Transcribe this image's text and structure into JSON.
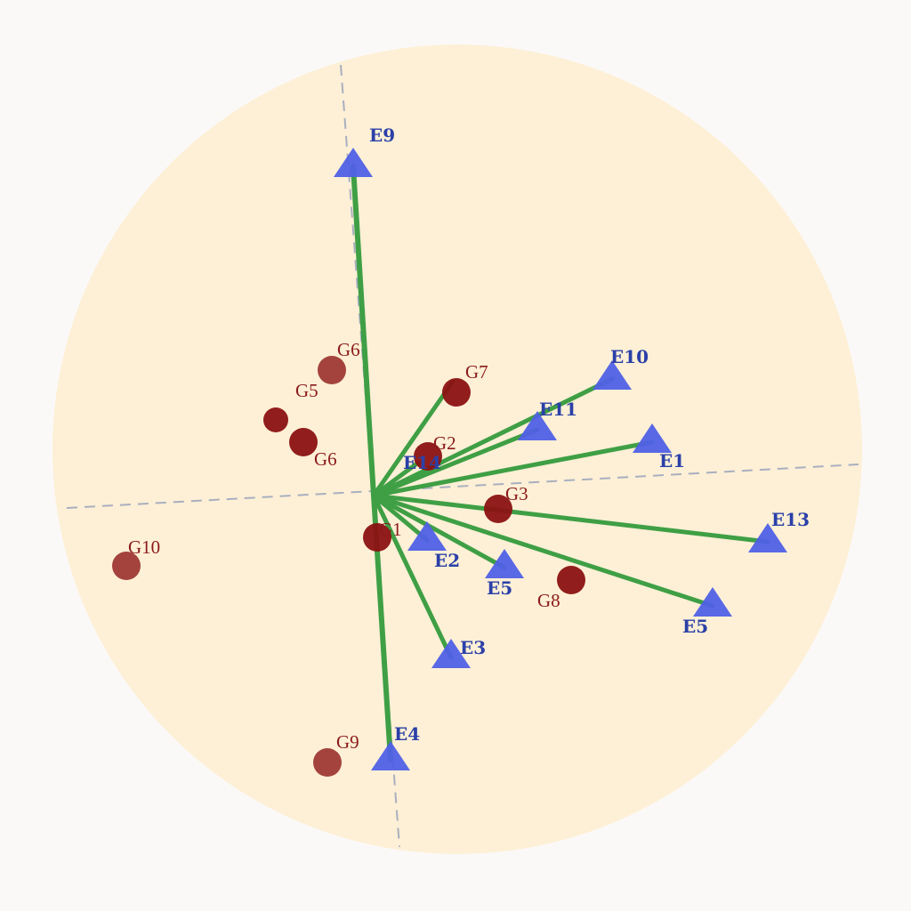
{
  "chart_data": {
    "type": "scatter",
    "title": "",
    "xlabel": "",
    "ylabel": "",
    "grid": false,
    "legend": "none",
    "colors": {
      "background_disc": "#fdf0d6",
      "vector": "#3f9f45",
      "environment": "#5060e6",
      "genotype": "#8b1212",
      "axis": "#a9afc0"
    },
    "environments": [
      {
        "label": "E9",
        "x": -0.23,
        "y": 3.74
      },
      {
        "label": "E10",
        "x": 2.68,
        "y": 1.35
      },
      {
        "label": "E11",
        "x": 1.84,
        "y": 0.78
      },
      {
        "label": "E1",
        "x": 3.13,
        "y": 0.64
      },
      {
        "label": "E14",
        "x": 0.5,
        "y": 0.37
      },
      {
        "label": "E13",
        "x": 4.43,
        "y": -0.48
      },
      {
        "label": "E5",
        "x": 3.81,
        "y": -1.2
      },
      {
        "label": "E5",
        "x": 1.47,
        "y": -0.77
      },
      {
        "label": "E2",
        "x": 0.6,
        "y": -0.46
      },
      {
        "label": "E3",
        "x": 0.87,
        "y": -1.78
      },
      {
        "label": "E4",
        "x": 0.19,
        "y": -2.93
      }
    ],
    "genotypes": [
      {
        "label": "G7",
        "x": 0.93,
        "y": 1.16
      },
      {
        "label": "G2",
        "x": 0.61,
        "y": 0.44
      },
      {
        "label": "G3",
        "x": 1.4,
        "y": -0.15
      },
      {
        "label": "G1",
        "x": 0.04,
        "y": -0.47
      },
      {
        "label": "G8",
        "x": 2.22,
        "y": -0.95
      },
      {
        "label": "G9",
        "x": -0.52,
        "y": -3.0
      },
      {
        "label": "G10",
        "x": -2.78,
        "y": -0.79
      },
      {
        "label": "G6",
        "x": -0.47,
        "y": 1.41
      },
      {
        "label": "G5",
        "x": -1.1,
        "y": 0.85
      },
      {
        "label": "G6",
        "x": -0.79,
        "y": 0.6
      }
    ],
    "vectors_to": [
      "E9",
      "E10",
      "E11",
      "E1",
      "E14",
      "E13",
      "E5",
      "E5",
      "E3",
      "E4",
      "G7"
    ]
  }
}
